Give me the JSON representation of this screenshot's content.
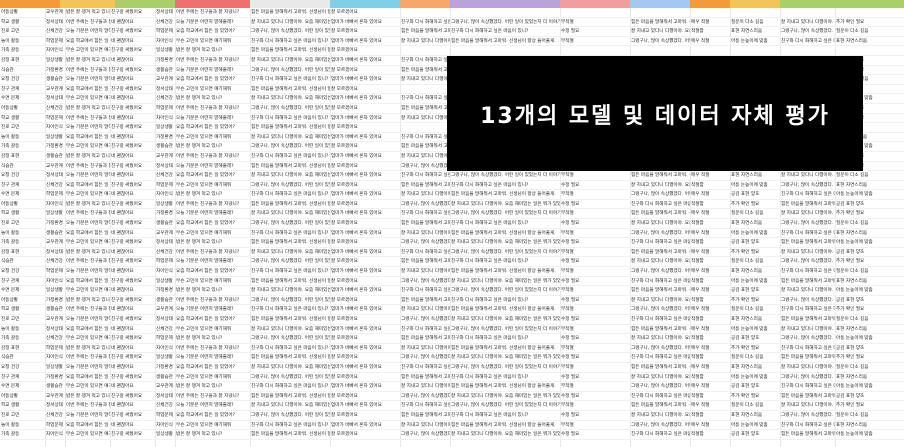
{
  "overlay": {
    "title": "13개의 모델 및 데이터 자체 평가"
  },
  "header_colors": [
    "#f39a3a",
    "#f1c55a",
    "#a9cf6a",
    "#ef7070",
    "#e9e9e9",
    "#7fd0e6",
    "#f4a86b",
    "#b9a3d8",
    "#f29e9e",
    "#a4c8ef"
  ],
  "column_text": {
    "index": [
      "아동상황",
      "요청 건강",
      "가족 갈등",
      "학교 생활",
      "친구 관계",
      "감정 표현",
      "진로 고민",
      "수면 문제",
      "식습관",
      "놀이 활동"
    ],
    "label": [
      "일상생활",
      "교우관계",
      "학업문제",
      "가정환경",
      "정서상태",
      "자아인식",
      "생활습관",
      "신체건강"
    ],
    "question": [
      "이번 주에는 친구들과 잘 지냈니?",
      "요즘 학교에서 힘든 일 있었어?",
      "밥은 잘 챙겨 먹고 있니?",
      "오늘 기분은 어떤지 말해줄래?",
      "무슨 고민이 있으면 얘기해줘"
    ],
    "answer": [
      "네 괜찮아요",
      "잘 모르겠어요",
      "요즘 조금 힘들어요",
      "친구랑 싸웠어요",
      "엄마가 바빠서 혼자 있어요",
      "그냥 그래요"
    ],
    "response": [
      "그랬구나, 많이 속상했겠다. 어떤 일이 있었는지 더 이야기해 줄 수 있을까?",
      "잘 지내고 있다니 다행이야. 요즘 재미있는 일은 뭐가 있었니?",
      "힘든 마음을 말해줘서 고마워. 선생님이 항상 들어줄게.",
      "친구와 다시 화해하고 싶은 마음이 있니?"
    ],
    "eval": [
      "적절함",
      "부적절",
      "보통",
      "매우 적절",
      "수정 필요",
      "재검토"
    ],
    "remark": [
      "공감 표현 양호",
      "질문이 다소 길음",
      "아동 눈높이에 맞춤",
      "추가 확인 필요",
      "표현 자연스러움"
    ]
  }
}
